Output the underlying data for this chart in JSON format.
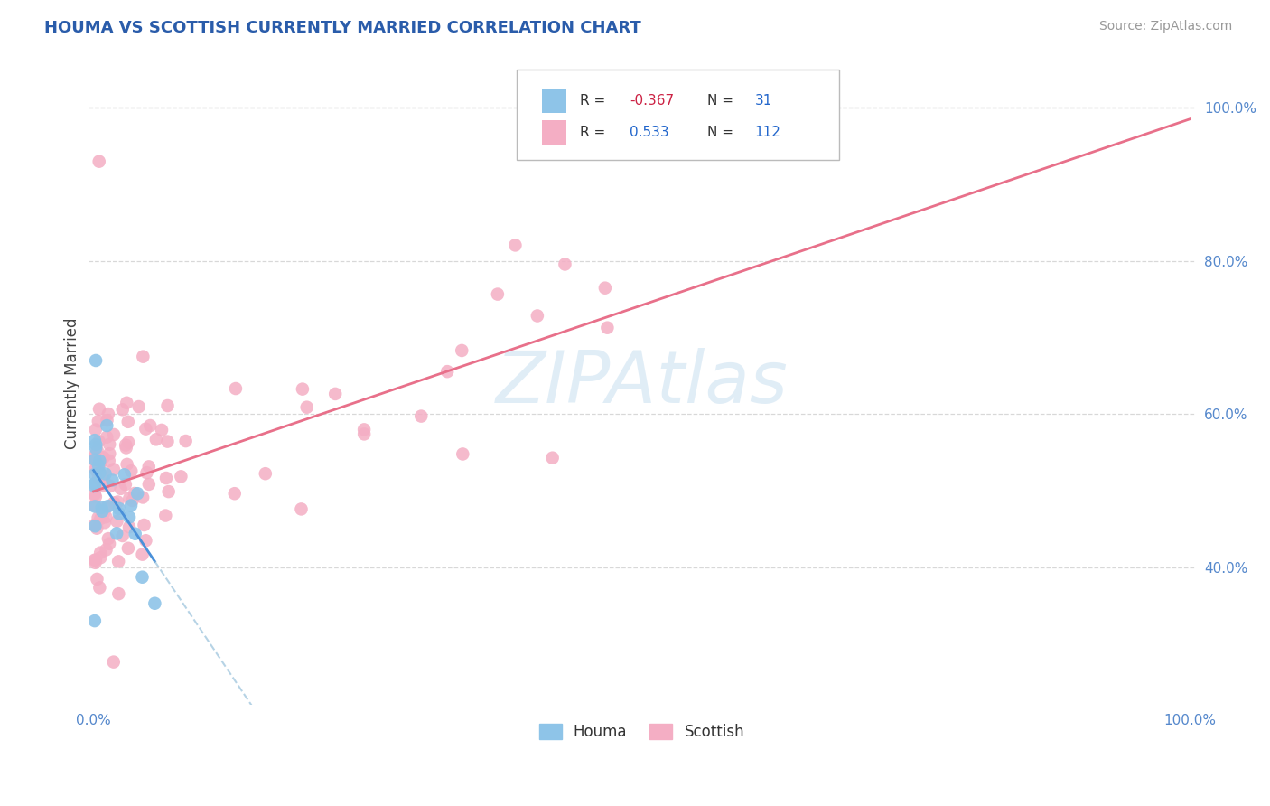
{
  "title": "HOUMA VS SCOTTISH CURRENTLY MARRIED CORRELATION CHART",
  "source_text": "Source: ZipAtlas.com",
  "ylabel": "Currently Married",
  "houma_R": -0.367,
  "houma_N": 31,
  "scottish_R": 0.533,
  "scottish_N": 112,
  "houma_color": "#8ec4e8",
  "scottish_color": "#f4aec4",
  "houma_line_color": "#4a90d9",
  "scottish_line_color": "#e8708a",
  "houma_line_dashed_color": "#90bcd8",
  "watermark_color": "#c8dff0",
  "background_color": "#ffffff",
  "grid_color": "#d8d8d8",
  "title_color": "#2a5caa",
  "axis_label_color": "#5588cc",
  "r_neg_color": "#cc2244",
  "r_pos_color": "#2266cc",
  "n_color": "#2266cc",
  "houma_seed": 42,
  "scottish_seed": 99,
  "xlim": [
    -0.005,
    1.005
  ],
  "ylim": [
    0.22,
    1.06
  ],
  "yticks": [
    0.4,
    0.6,
    0.8,
    1.0
  ],
  "xticks": [
    0.0,
    0.1,
    0.2,
    0.3,
    0.4,
    0.5,
    0.6,
    0.7,
    0.8,
    0.9,
    1.0
  ]
}
